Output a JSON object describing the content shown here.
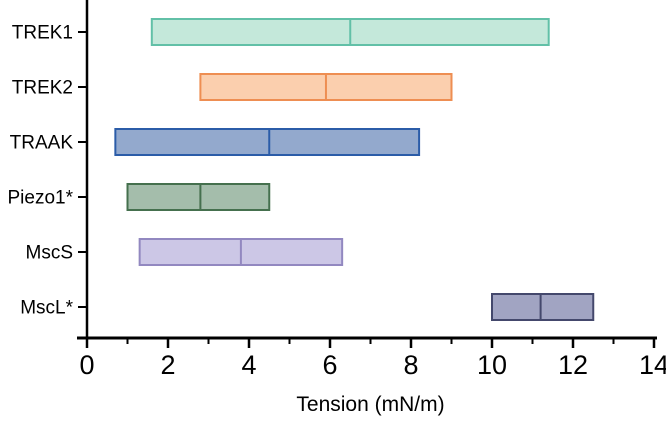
{
  "chart_data": {
    "type": "bar",
    "subtype": "horizontal-range-bar",
    "title": "",
    "xlabel": "Tension (mN/m)",
    "ylabel": "",
    "xlim": [
      0,
      14
    ],
    "x_major_ticks": [
      0,
      2,
      4,
      6,
      8,
      10,
      12,
      14
    ],
    "x_minor_ticks": [
      1,
      3,
      5,
      7,
      9,
      11,
      13
    ],
    "grid": false,
    "legend": false,
    "axis_color": "#000000",
    "background_color": "#ffffff",
    "categories": [
      "TREK1",
      "TREK2",
      "TRAAK",
      "Piezo1*",
      "MscS",
      "MscL*"
    ],
    "series": [
      {
        "name": "TREK1",
        "low": 1.6,
        "mid": 6.5,
        "high": 11.4,
        "fill": "#c4e8da",
        "stroke": "#62c0a7"
      },
      {
        "name": "TREK2",
        "low": 2.8,
        "mid": 5.9,
        "high": 9.0,
        "fill": "#fbcfae",
        "stroke": "#ee8e52"
      },
      {
        "name": "TRAAK",
        "low": 0.7,
        "mid": 4.5,
        "high": 8.2,
        "fill": "#93a9cd",
        "stroke": "#2b5ca8"
      },
      {
        "name": "Piezo1*",
        "low": 1.0,
        "mid": 2.8,
        "high": 4.5,
        "fill": "#a4bdab",
        "stroke": "#45704e"
      },
      {
        "name": "MscS",
        "low": 1.3,
        "mid": 3.8,
        "high": 6.3,
        "fill": "#ccc7e6",
        "stroke": "#9288c0"
      },
      {
        "name": "MscL*",
        "low": 10.0,
        "mid": 11.2,
        "high": 12.5,
        "fill": "#a1a4c2",
        "stroke": "#44486c"
      }
    ]
  }
}
